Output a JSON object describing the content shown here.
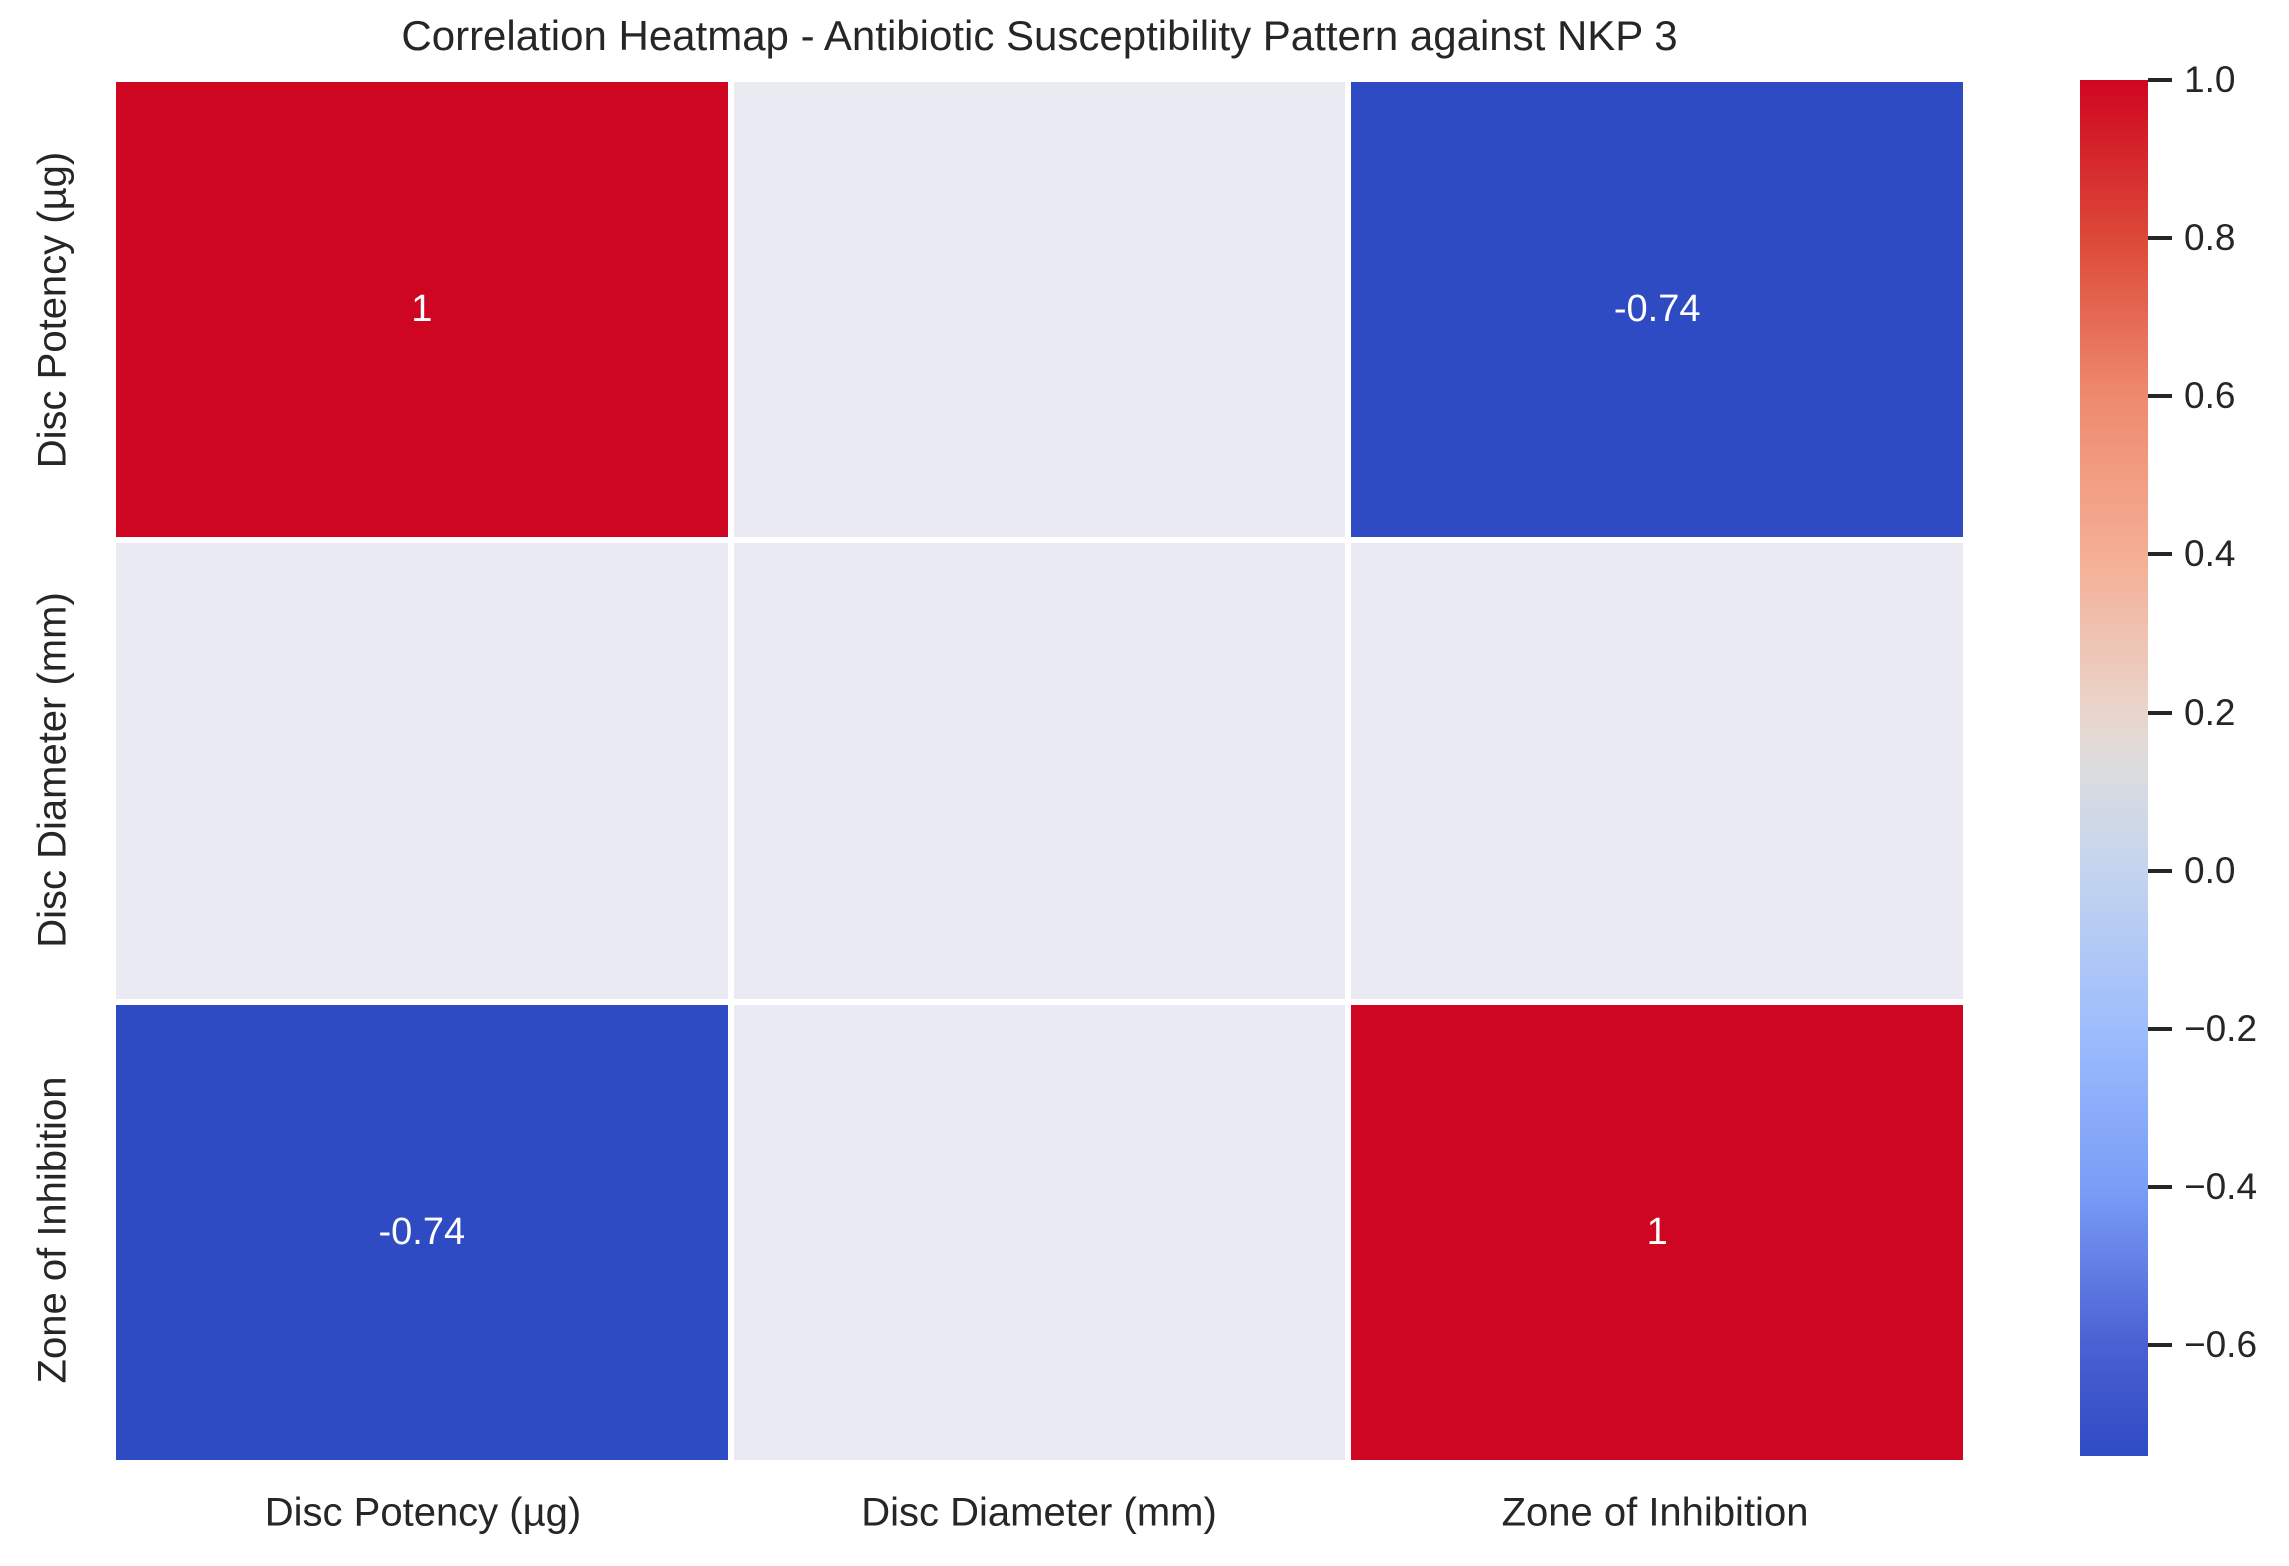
{
  "title": "Correlation Heatmap - Antibiotic Susceptibility Pattern against NKP 3",
  "chart_data": {
    "type": "heatmap",
    "x_categories": [
      "Disc Potency (µg)",
      "Disc Diameter (mm)",
      "Zone of Inhibition"
    ],
    "y_categories": [
      "Disc Potency (µg)",
      "Disc Diameter (mm)",
      "Zone of Inhibition"
    ],
    "matrix": [
      [
        1,
        null,
        -0.74
      ],
      [
        null,
        null,
        null
      ],
      [
        -0.74,
        null,
        1
      ]
    ],
    "annotations": [
      [
        "1",
        "",
        "-0.74"
      ],
      [
        "",
        "",
        ""
      ],
      [
        "-0.74",
        "",
        "1"
      ]
    ],
    "vmin": -0.74,
    "vmax": 1.0,
    "colormap": "coolwarm",
    "nan_color": "#e9eaf2",
    "annotation_color": "#ffffff",
    "text_color": "#262626",
    "cell_colors": [
      [
        "#cf0621",
        "#e9eaf2",
        "#2f4bc3"
      ],
      [
        "#e9eaf2",
        "#e9eaf2",
        "#e9eaf2"
      ],
      [
        "#2f4bc3",
        "#e9eaf2",
        "#cf0621"
      ]
    ],
    "colorbar_ticks": [
      1.0,
      0.8,
      0.6,
      0.4,
      0.2,
      0.0,
      -0.2,
      -0.4,
      -0.6
    ],
    "colorbar_tick_labels": [
      "1.0",
      "0.8",
      "0.6",
      "0.4",
      "0.2",
      "0.0",
      "−0.2",
      "−0.4",
      "−0.6"
    ],
    "colorbar_gradient": [
      {
        "pos": 0.0,
        "color": "#cf0621"
      },
      {
        "pos": 0.115,
        "color": "#dc4938"
      },
      {
        "pos": 0.23,
        "color": "#ee8a6e"
      },
      {
        "pos": 0.345,
        "color": "#f5ae94"
      },
      {
        "pos": 0.46,
        "color": "#e9d5cc"
      },
      {
        "pos": 0.5,
        "color": "#dcdcde"
      },
      {
        "pos": 0.575,
        "color": "#c4d4ee"
      },
      {
        "pos": 0.69,
        "color": "#9dbdfc"
      },
      {
        "pos": 0.805,
        "color": "#7b9df7"
      },
      {
        "pos": 0.92,
        "color": "#4a60d2"
      },
      {
        "pos": 1.0,
        "color": "#2f4bc3"
      }
    ],
    "legend_position": "right",
    "grid": false
  }
}
